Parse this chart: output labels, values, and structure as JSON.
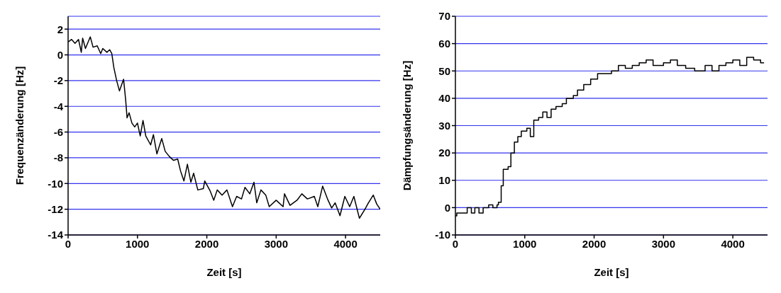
{
  "chart_data": [
    {
      "type": "line",
      "xlabel": "Zeit [s]",
      "ylabel": "Frequenzänderung [Hz]",
      "xlim": [
        0,
        4500
      ],
      "xticks": [
        0,
        1000,
        2000,
        3000,
        4000
      ],
      "ylim": [
        -14,
        3
      ],
      "yticks": [
        -14,
        -12,
        -10,
        -8,
        -6,
        -4,
        -2,
        0,
        2
      ],
      "grid": "y",
      "legend": false,
      "x": [
        0,
        50,
        100,
        150,
        190,
        210,
        250,
        320,
        360,
        420,
        470,
        500,
        560,
        600,
        630,
        660,
        700,
        740,
        780,
        800,
        830,
        850,
        880,
        920,
        960,
        1000,
        1040,
        1080,
        1120,
        1190,
        1230,
        1280,
        1350,
        1400,
        1460,
        1520,
        1580,
        1620,
        1670,
        1720,
        1770,
        1810,
        1870,
        1950,
        1970,
        2050,
        2100,
        2150,
        2220,
        2290,
        2370,
        2430,
        2500,
        2550,
        2620,
        2680,
        2720,
        2780,
        2850,
        2900,
        3000,
        3100,
        3120,
        3200,
        3300,
        3370,
        3450,
        3550,
        3600,
        3670,
        3740,
        3800,
        3850,
        3920,
        3990,
        4060,
        4120,
        4200,
        4280,
        4330,
        4400,
        4450,
        4500
      ],
      "series": [
        {
          "color": "#000000",
          "values": [
            1.0,
            1.2,
            0.9,
            1.2,
            0.2,
            1.3,
            0.5,
            1.4,
            0.6,
            0.7,
            0.1,
            0.5,
            0.2,
            0.4,
            0.1,
            -1.0,
            -2.0,
            -2.8,
            -2.2,
            -1.9,
            -3.5,
            -4.9,
            -4.5,
            -5.3,
            -5.6,
            -5.3,
            -6.3,
            -5.1,
            -6.3,
            -7.0,
            -6.2,
            -7.7,
            -6.5,
            -7.5,
            -7.9,
            -8.2,
            -8.1,
            -9.0,
            -9.8,
            -8.5,
            -9.9,
            -9.2,
            -10.5,
            -10.4,
            -9.8,
            -10.6,
            -11.3,
            -10.5,
            -10.9,
            -10.5,
            -11.8,
            -11.0,
            -11.2,
            -10.3,
            -10.8,
            -9.9,
            -11.5,
            -10.5,
            -10.9,
            -11.8,
            -11.3,
            -11.8,
            -10.8,
            -11.7,
            -11.3,
            -10.8,
            -11.2,
            -11.0,
            -11.8,
            -10.2,
            -11.2,
            -11.9,
            -11.5,
            -12.5,
            -11.0,
            -11.8,
            -11.0,
            -12.7,
            -12.0,
            -11.5,
            -10.9,
            -11.6,
            -12.0
          ]
        }
      ]
    },
    {
      "type": "step",
      "xlabel": "Zeit [s]",
      "ylabel": "Dämpfungsänderung [Hz]",
      "xlim": [
        0,
        4500
      ],
      "xticks": [
        0,
        1000,
        2000,
        3000,
        4000
      ],
      "ylim": [
        -10,
        70
      ],
      "yticks": [
        -10,
        0,
        10,
        20,
        30,
        40,
        50,
        60,
        70
      ],
      "grid": "y",
      "legend": false,
      "x": [
        0,
        20,
        150,
        170,
        230,
        280,
        340,
        400,
        480,
        540,
        600,
        620,
        660,
        690,
        760,
        800,
        850,
        900,
        950,
        1030,
        1080,
        1130,
        1200,
        1260,
        1320,
        1380,
        1450,
        1540,
        1600,
        1700,
        1760,
        1850,
        1950,
        2050,
        2150,
        2250,
        2350,
        2450,
        2550,
        2650,
        2750,
        2850,
        3000,
        3100,
        3200,
        3320,
        3450,
        3600,
        3700,
        3800,
        3900,
        4000,
        4100,
        4200,
        4300,
        4400,
        4450
      ],
      "series": [
        {
          "color": "#000000",
          "values": [
            -3,
            -2,
            -2,
            0,
            -2,
            0,
            -2,
            0,
            1,
            0,
            1,
            2,
            8,
            14,
            15,
            20,
            24,
            26,
            28,
            29,
            26,
            32,
            33,
            35,
            33,
            36,
            37,
            38,
            40,
            41,
            43,
            45,
            47,
            49,
            49,
            50,
            52,
            51,
            52,
            53,
            54,
            52,
            53,
            54,
            52,
            51,
            50,
            52,
            50,
            52,
            53,
            54,
            52,
            55,
            54,
            53,
            53
          ]
        }
      ]
    }
  ]
}
